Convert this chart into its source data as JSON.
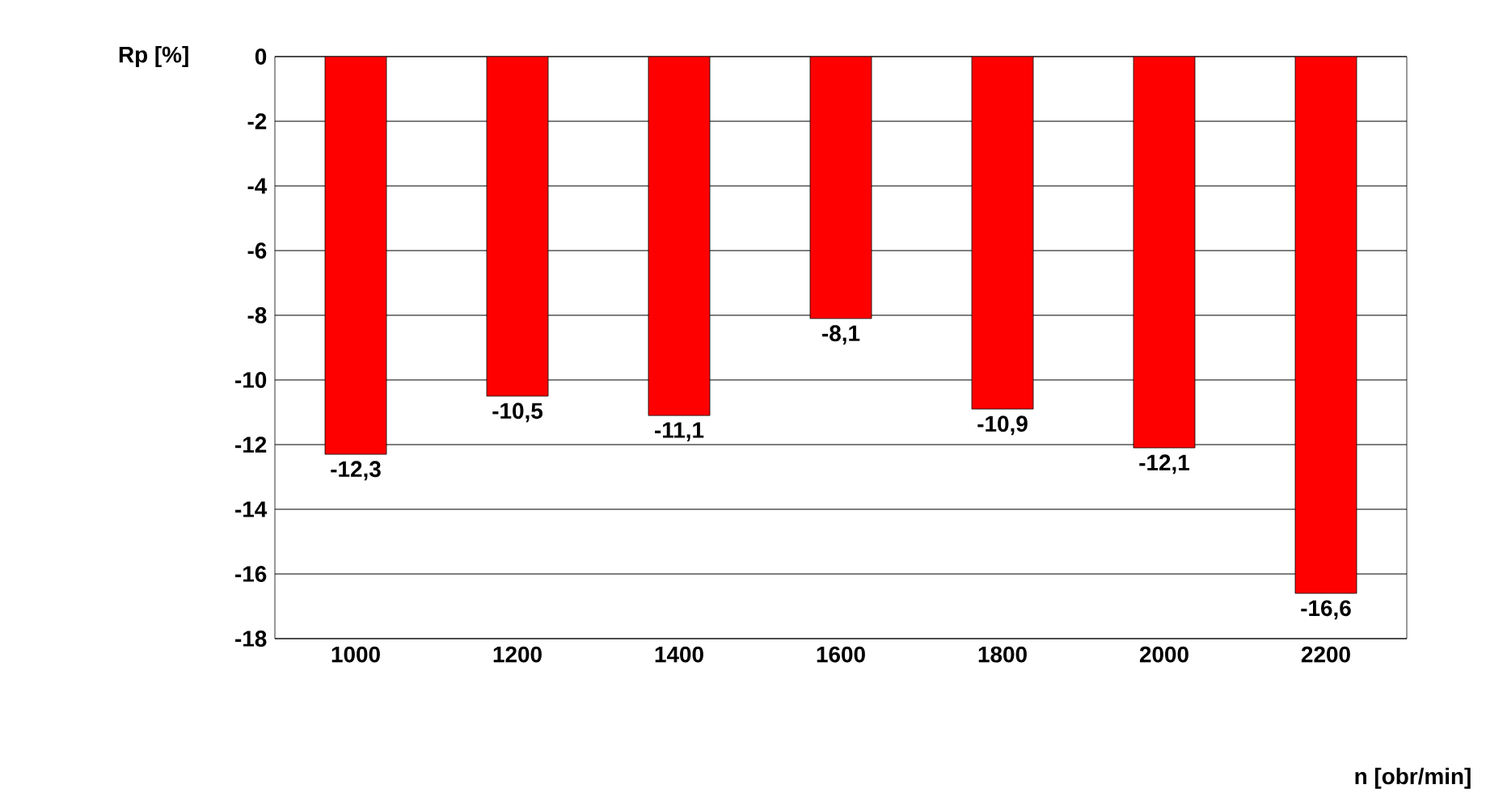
{
  "chart_data": {
    "type": "bar",
    "xlabel": "n [obr/min]",
    "ylabel": "Rp [%]",
    "categories": [
      "1000",
      "1200",
      "1400",
      "1600",
      "1800",
      "2000",
      "2200"
    ],
    "values": [
      -12.3,
      -10.5,
      -11.1,
      -8.1,
      -10.9,
      -12.1,
      -16.6
    ],
    "value_labels": [
      "-12,3",
      "-10,5",
      "-11,1",
      "-8,1",
      "-10,9",
      "-12,1",
      "-16,6"
    ],
    "color": "#ff0000",
    "ylim": [
      -18,
      0
    ],
    "yticks": [
      -18,
      -16,
      -14,
      -12,
      -10,
      -8,
      -6,
      -4,
      -2,
      0
    ],
    "grid": "y"
  }
}
